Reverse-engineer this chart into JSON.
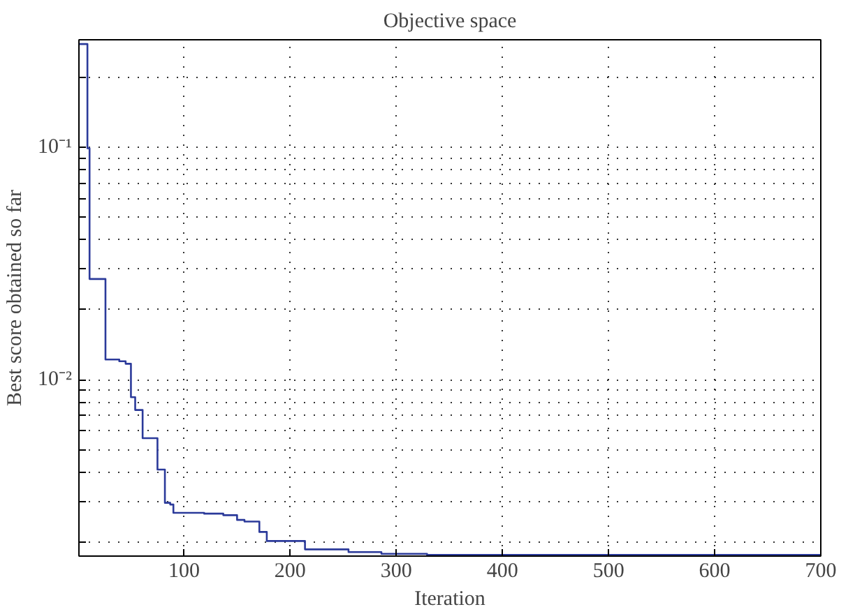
{
  "chart_data": {
    "type": "step",
    "title": "Objective space",
    "xlabel": "Iteration",
    "ylabel": "Best score obtained so far",
    "x": [
      1,
      9,
      11,
      26,
      39,
      45,
      50,
      54,
      61,
      75,
      82,
      87,
      90,
      119,
      137,
      150,
      157,
      171,
      178,
      214,
      255,
      286,
      329,
      700
    ],
    "series": [
      {
        "color": "#2b3a9a",
        "values": [
          0.278,
          0.099,
          0.0271,
          0.0122,
          0.012,
          0.0117,
          0.0084,
          0.0074,
          0.0056,
          0.0041,
          0.00295,
          0.0029,
          0.00267,
          0.00265,
          0.00261,
          0.00249,
          0.00245,
          0.00221,
          0.00202,
          0.00186,
          0.00181,
          0.00178,
          0.00176,
          0.00176
        ]
      }
    ],
    "log": "y",
    "xlim": [
      1,
      700
    ],
    "ylim": [
      0.00174,
      0.29
    ],
    "xticks": [
      100,
      200,
      300,
      400,
      500,
      600,
      700
    ],
    "yticks": [
      {
        "value": 0.002,
        "label": null
      },
      {
        "value": 0.003,
        "label": null
      },
      {
        "value": 0.004,
        "label": null
      },
      {
        "value": 0.005,
        "label": null
      },
      {
        "value": 0.006,
        "label": null
      },
      {
        "value": 0.007,
        "label": null
      },
      {
        "value": 0.008,
        "label": null
      },
      {
        "value": 0.009,
        "label": null
      },
      {
        "value": 0.01,
        "label": "10⁻²"
      },
      {
        "value": 0.02,
        "label": null
      },
      {
        "value": 0.03,
        "label": null
      },
      {
        "value": 0.04,
        "label": null
      },
      {
        "value": 0.05,
        "label": null
      },
      {
        "value": 0.06,
        "label": null
      },
      {
        "value": 0.07,
        "label": null
      },
      {
        "value": 0.08,
        "label": null
      },
      {
        "value": 0.09,
        "label": null
      },
      {
        "value": 0.1,
        "label": "10⁻¹"
      },
      {
        "value": 0.2,
        "label": null
      }
    ],
    "grid": true,
    "line_style": "solid",
    "marker": "none"
  }
}
